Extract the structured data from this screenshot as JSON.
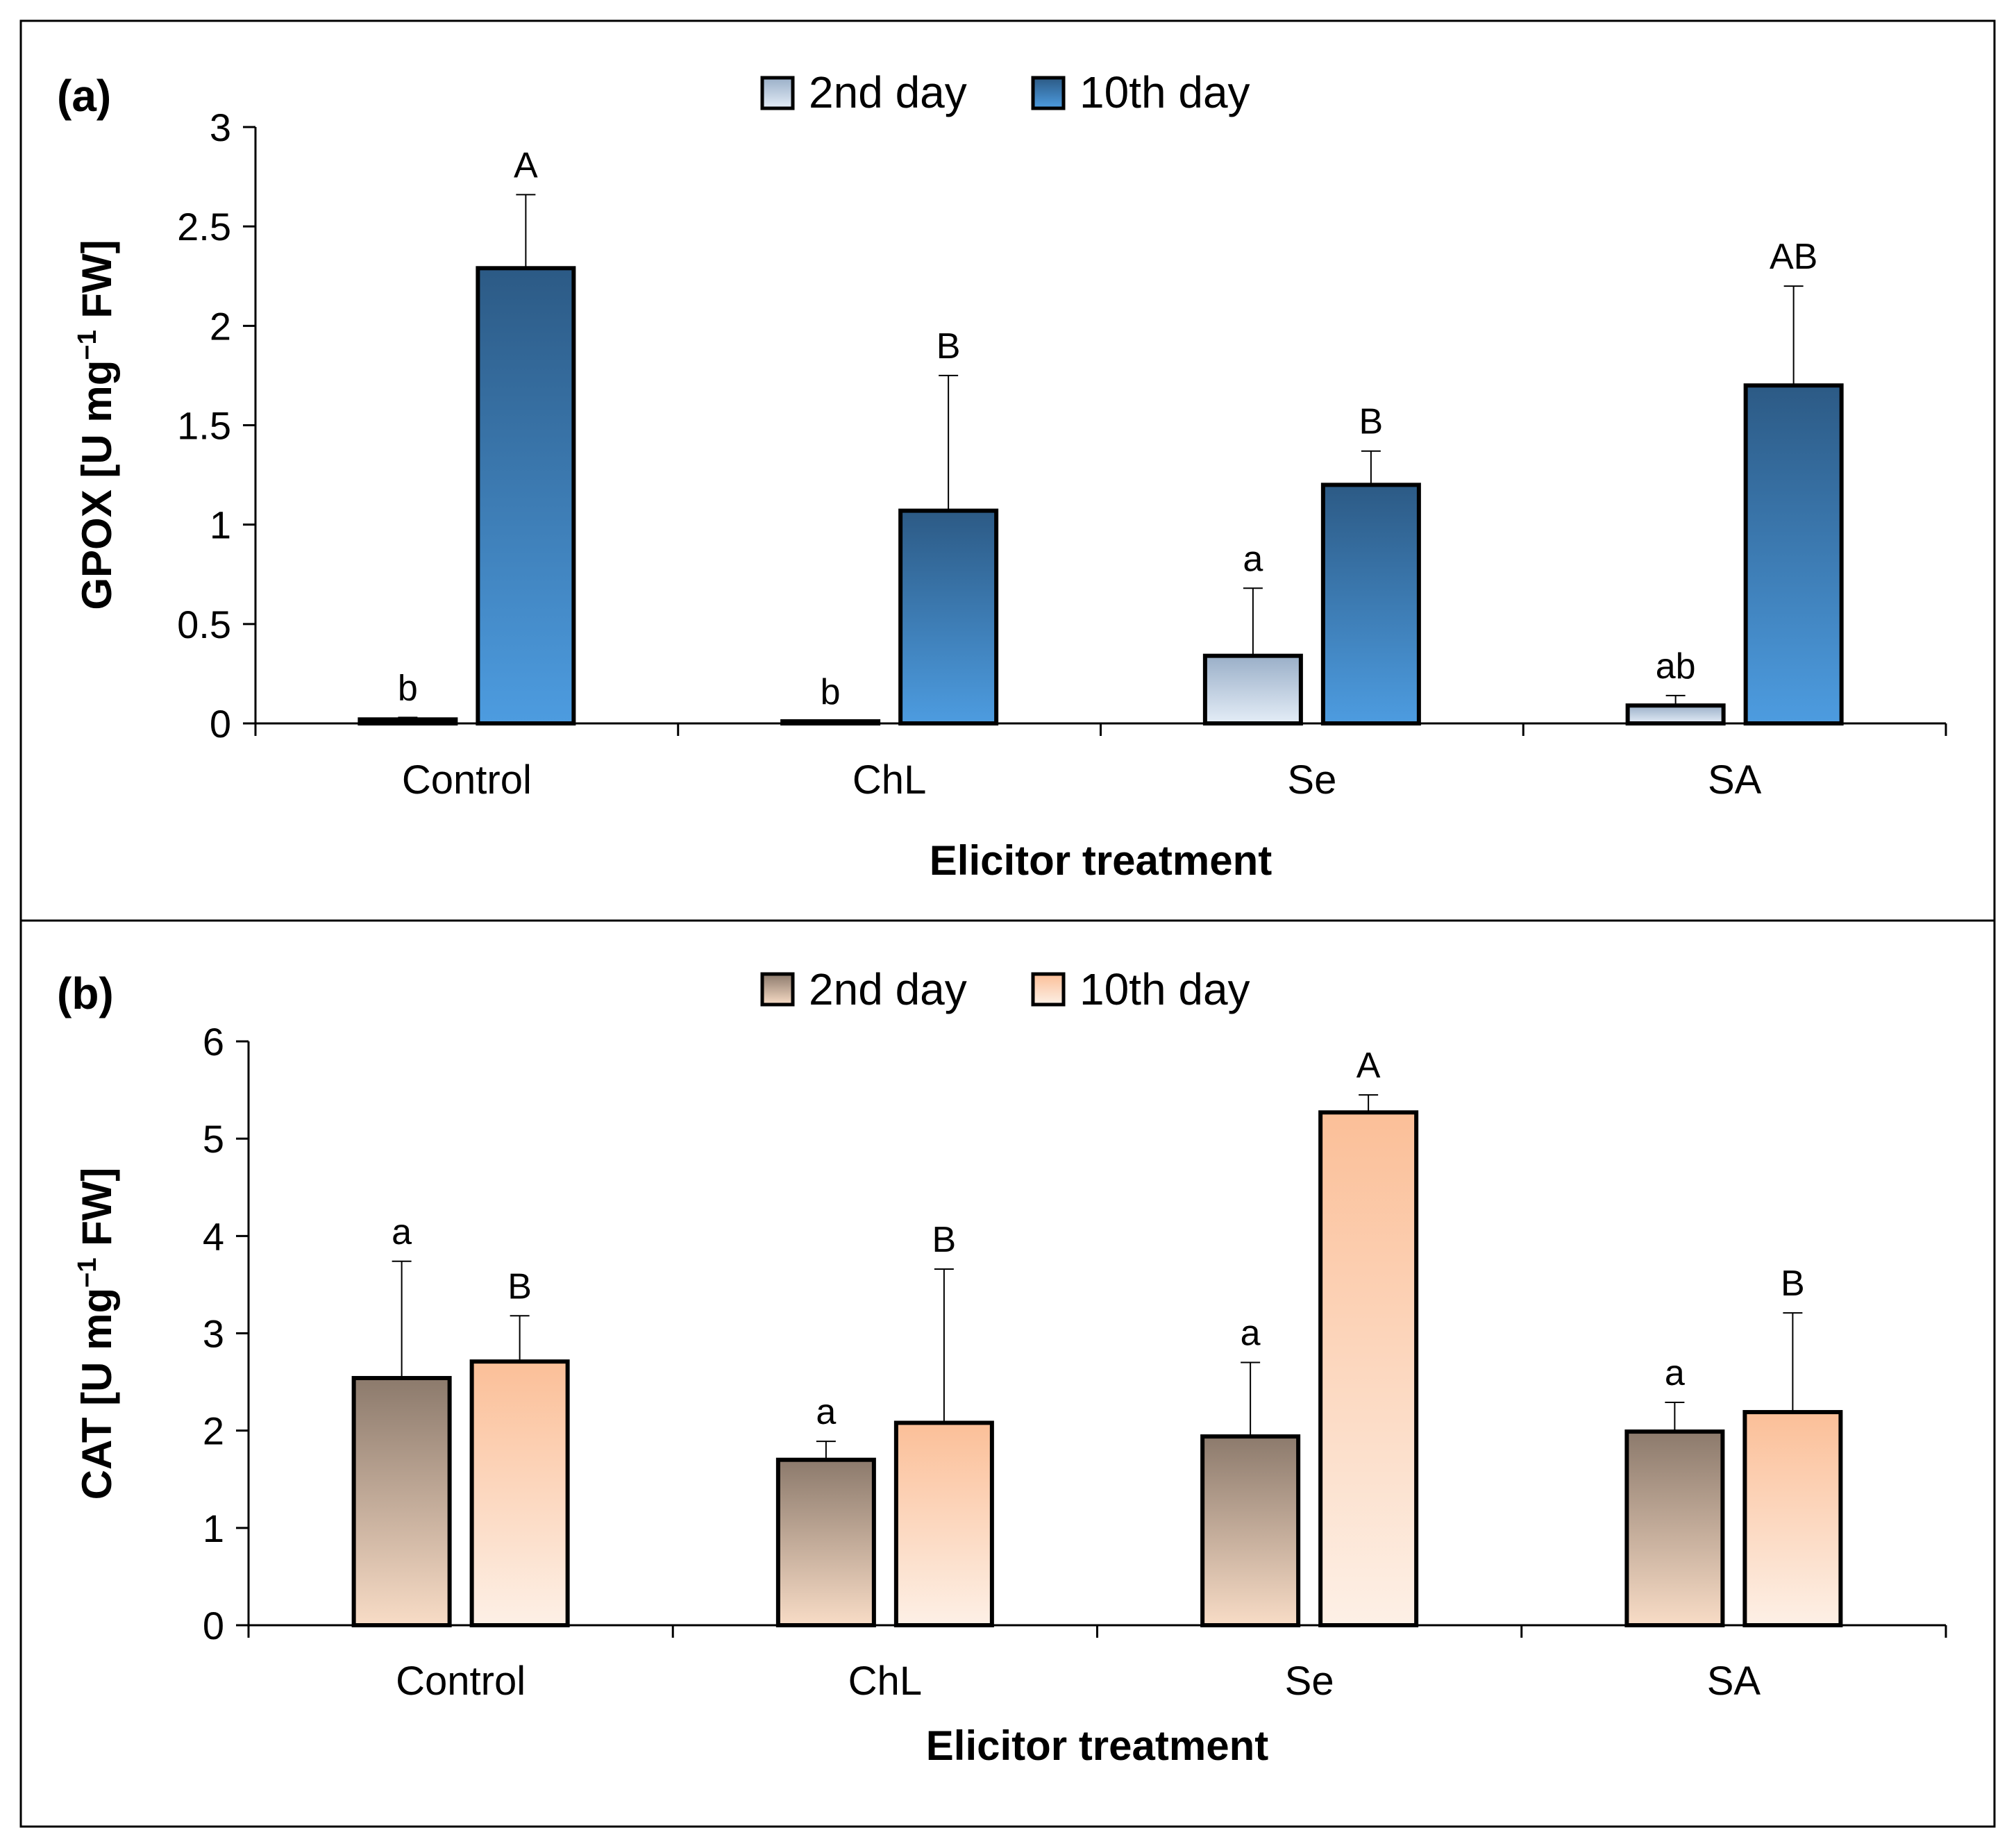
{
  "chart_data": [
    {
      "type": "bar",
      "panel_label": "(a)",
      "title": "",
      "categories": [
        "Control",
        "ChL",
        "Se",
        "SA"
      ],
      "series": [
        {
          "name": "2nd day",
          "values": [
            0.02,
            0.01,
            0.34,
            0.09
          ],
          "errors": [
            0.01,
            0.0,
            0.34,
            0.05
          ],
          "letters": [
            "b",
            "b",
            "a",
            "ab"
          ]
        },
        {
          "name": "10th day",
          "values": [
            2.29,
            1.07,
            1.2,
            1.7
          ],
          "errors": [
            0.37,
            0.68,
            0.17,
            0.5
          ],
          "letters": [
            "A",
            "B",
            "B",
            "AB"
          ]
        }
      ],
      "xlabel": "Elicitor treatment",
      "ylabel": "GPOX [U mg",
      "ylabel_sup": "−1",
      "ylabel_tail": " FW]",
      "ylim": [
        0,
        3
      ],
      "yticks": [
        0,
        0.5,
        1,
        1.5,
        2,
        2.5,
        3
      ],
      "ytick_labels": [
        "0",
        "0.5",
        "1",
        "1.5",
        "2",
        "2.5",
        "3"
      ],
      "legend_position": "top-center",
      "colors": {
        "series0_top": "#9aafc8",
        "series0_bottom": "#e4edf7",
        "series1_top": "#2c5a85",
        "series1_bottom": "#4d9ce0"
      }
    },
    {
      "type": "bar",
      "panel_label": "(b)",
      "title": "",
      "categories": [
        "Control",
        "ChL",
        "Se",
        "SA"
      ],
      "series": [
        {
          "name": "2nd day",
          "values": [
            2.54,
            1.7,
            1.94,
            1.99
          ],
          "errors": [
            1.2,
            0.19,
            0.76,
            0.3
          ],
          "letters": [
            "a",
            "a",
            "a",
            "a"
          ]
        },
        {
          "name": "10th day",
          "values": [
            2.71,
            2.08,
            5.27,
            2.19
          ],
          "errors": [
            0.47,
            1.58,
            0.18,
            1.02
          ],
          "letters": [
            "B",
            "B",
            "A",
            "B"
          ]
        }
      ],
      "xlabel": "Elicitor treatment",
      "ylabel": "CAT [U mg",
      "ylabel_sup": "−1",
      "ylabel_tail": " FW]",
      "ylim": [
        0,
        6
      ],
      "yticks": [
        0,
        1,
        2,
        3,
        4,
        5,
        6
      ],
      "ytick_labels": [
        "0",
        "1",
        "2",
        "3",
        "4",
        "5",
        "6"
      ],
      "legend_position": "top-center",
      "colors": {
        "series0_top": "#8c7a6c",
        "series0_bottom": "#f8dcc6",
        "series1_top": "#fbbf98",
        "series1_bottom": "#fdf0e6"
      }
    }
  ]
}
